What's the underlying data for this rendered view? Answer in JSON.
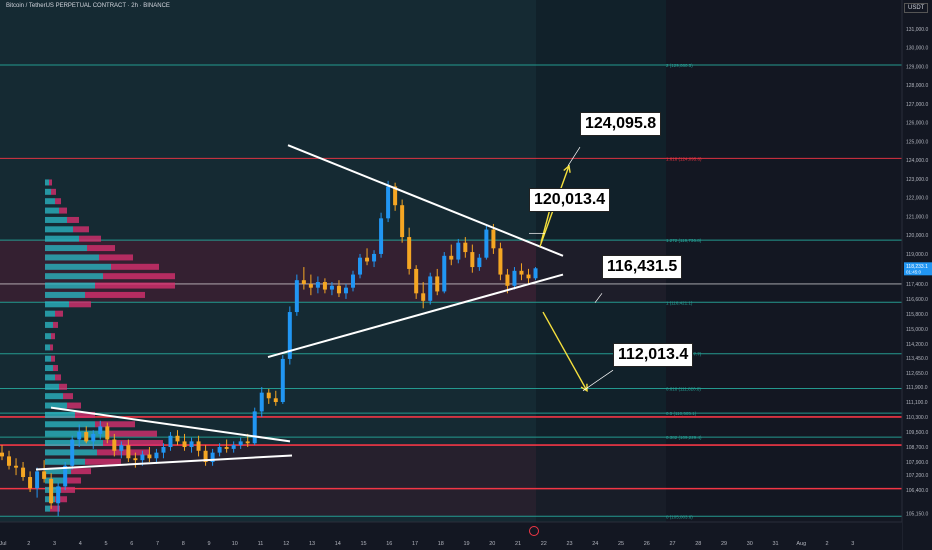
{
  "header": {
    "symbol": "Bitcoin / TetherUS PERPETUAL CONTRACT · 2h · BINANCE",
    "currency": "USDT"
  },
  "colors": {
    "background": "#131722",
    "zone_shade": "#152a33",
    "fib_line": "#26a69a",
    "hline_red": "#f23645",
    "bull": "#2196f3",
    "bear": "#f5a623",
    "vp_up": "#2ab3bf",
    "vp_down": "#d6306e",
    "trendline": "#ffffff",
    "projection": "#f5e03d"
  },
  "chart_data": {
    "type": "candlestick",
    "ylim": [
      104700,
      131800
    ],
    "y_ticks": [
      {
        "value": 105150,
        "label": "105,150.0"
      },
      {
        "value": 106400,
        "label": "106,400.0"
      },
      {
        "value": 107200,
        "label": "107,200.0"
      },
      {
        "value": 107900,
        "label": "107,900.0"
      },
      {
        "value": 108700,
        "label": "108,700.0"
      },
      {
        "value": 109500,
        "label": "109,500.0"
      },
      {
        "value": 110300,
        "label": "110,300.0"
      },
      {
        "value": 111100,
        "label": "111,100.0"
      },
      {
        "value": 111900,
        "label": "111,900.0"
      },
      {
        "value": 112650,
        "label": "112,650.0"
      },
      {
        "value": 113450,
        "label": "113,450.0"
      },
      {
        "value": 114200,
        "label": "114,200.0"
      },
      {
        "value": 115000,
        "label": "115,000.0"
      },
      {
        "value": 115800,
        "label": "115,800.0"
      },
      {
        "value": 116600,
        "label": "116,600.0"
      },
      {
        "value": 117400,
        "label": "117,400.0"
      },
      {
        "value": 118200,
        "label": "118,200.0"
      },
      {
        "value": 119000,
        "label": "119,000.0"
      },
      {
        "value": 120000,
        "label": "120,000.0"
      },
      {
        "value": 121000,
        "label": "121,000.0"
      },
      {
        "value": 122000,
        "label": "122,000.0"
      },
      {
        "value": 123000,
        "label": "123,000.0"
      },
      {
        "value": 124000,
        "label": "124,000.0"
      },
      {
        "value": 125000,
        "label": "125,000.0"
      },
      {
        "value": 126000,
        "label": "126,000.0"
      },
      {
        "value": 127000,
        "label": "127,000.0"
      },
      {
        "value": 128000,
        "label": "128,000.0"
      },
      {
        "value": 129000,
        "label": "129,000.0"
      },
      {
        "value": 130000,
        "label": "130,000.0"
      },
      {
        "value": 131000,
        "label": "131,000.0"
      }
    ],
    "x_ticks": [
      "Jul",
      "2",
      "3",
      "4",
      "5",
      "6",
      "7",
      "8",
      "9",
      "10",
      "11",
      "12",
      "13",
      "14",
      "15",
      "16",
      "17",
      "18",
      "19",
      "20",
      "21",
      "22",
      "23",
      "24",
      "25",
      "26",
      "27",
      "28",
      "29",
      "30",
      "31",
      "Aug",
      "2",
      "3"
    ],
    "fib_levels": [
      {
        "ratio": "0",
        "price": 105003.6,
        "label": "0 (105,003.6)"
      },
      {
        "ratio": "0.382",
        "price": 109229.4,
        "label": "0.382 (109,229.4)"
      },
      {
        "ratio": "0.5",
        "price": 110505.1,
        "label": "0.5 (110,505.1)"
      },
      {
        "ratio": "0.618",
        "price": 111820.8,
        "label": "0.618 (111,820.8)"
      },
      {
        "ratio": "0.786",
        "price": 113677.7,
        "label": "0.786 (113,677.7)"
      },
      {
        "ratio": "1",
        "price": 116421.1,
        "label": "1 (116,421.1)"
      },
      {
        "ratio": "1.272",
        "price": 119736.8,
        "label": "1.272 (119,736.8)"
      },
      {
        "ratio": "1.618",
        "price": 124095.8,
        "label": "1.618 (124,095.8)"
      },
      {
        "ratio": "2",
        "price": 129080.5,
        "label": "2 (129,080.5)"
      }
    ],
    "horizontal_levels": [
      {
        "price": 110305.6,
        "label": "110,305.6"
      },
      {
        "price": 108802.5,
        "label": "108,802.5"
      },
      {
        "price": 106479.9,
        "label": "106,479.9"
      }
    ],
    "last_price": {
      "price": "118,233.1",
      "countdown": "01:45:0"
    },
    "annotations": [
      "124,095.8",
      "120,013.4",
      "116,431.5",
      "112,013.4"
    ],
    "candles": [
      [
        0,
        108400,
        108800,
        108000,
        108200
      ],
      [
        1,
        108200,
        108500,
        107500,
        107700
      ],
      [
        2,
        107700,
        108100,
        107200,
        107600
      ],
      [
        3,
        107600,
        107900,
        106900,
        107100
      ],
      [
        4,
        107100,
        107400,
        106300,
        106500
      ],
      [
        5,
        106500,
        107600,
        106000,
        107400
      ],
      [
        6,
        107400,
        108000,
        106800,
        107000
      ],
      [
        7,
        107000,
        107300,
        105400,
        105700
      ],
      [
        8,
        105700,
        106800,
        105003,
        106600
      ],
      [
        9,
        106600,
        107900,
        106400,
        107700
      ],
      [
        10,
        107700,
        109300,
        107500,
        109100
      ],
      [
        11,
        109100,
        109900,
        108700,
        109500
      ],
      [
        12,
        109500,
        109800,
        108900,
        109000
      ],
      [
        13,
        109000,
        109600,
        108600,
        109400
      ],
      [
        14,
        109400,
        110100,
        109100,
        109800
      ],
      [
        15,
        109800,
        110000,
        108900,
        109100
      ],
      [
        16,
        109100,
        109400,
        108200,
        108500
      ],
      [
        17,
        108500,
        109000,
        108100,
        108800
      ],
      [
        18,
        108800,
        109100,
        107900,
        108100
      ],
      [
        19,
        108100,
        108400,
        107600,
        108000
      ],
      [
        20,
        108000,
        108500,
        107700,
        108300
      ],
      [
        21,
        108300,
        108700,
        107900,
        108100
      ],
      [
        22,
        108100,
        108600,
        107800,
        108400
      ],
      [
        23,
        108400,
        108900,
        108100,
        108700
      ],
      [
        24,
        108700,
        109500,
        108500,
        109300
      ],
      [
        25,
        109300,
        109600,
        108800,
        109000
      ],
      [
        26,
        109000,
        109400,
        108500,
        108700
      ],
      [
        27,
        108700,
        109200,
        108400,
        109000
      ],
      [
        28,
        109000,
        109300,
        108200,
        108500
      ],
      [
        29,
        108500,
        108800,
        107700,
        107900
      ],
      [
        30,
        107900,
        108600,
        107700,
        108400
      ],
      [
        31,
        108400,
        108900,
        108200,
        108700
      ],
      [
        32,
        108700,
        109100,
        108400,
        108600
      ],
      [
        33,
        108600,
        109000,
        108400,
        108800
      ],
      [
        34,
        108800,
        109200,
        108600,
        109000
      ],
      [
        35,
        109000,
        109400,
        108700,
        108900
      ],
      [
        36,
        108900,
        110800,
        108800,
        110600
      ],
      [
        37,
        110600,
        111900,
        110300,
        111600
      ],
      [
        38,
        111600,
        111800,
        111000,
        111300
      ],
      [
        39,
        111300,
        111700,
        110900,
        111100
      ],
      [
        40,
        111100,
        113600,
        111000,
        113400
      ],
      [
        41,
        113400,
        116200,
        113100,
        115900
      ],
      [
        42,
        115900,
        117900,
        115700,
        117600
      ],
      [
        43,
        117600,
        118300,
        117100,
        117400
      ],
      [
        44,
        117400,
        117900,
        116800,
        117200
      ],
      [
        45,
        117200,
        117800,
        116900,
        117500
      ],
      [
        46,
        117500,
        117700,
        116900,
        117100
      ],
      [
        47,
        117100,
        117500,
        116800,
        117300
      ],
      [
        48,
        117300,
        117600,
        116700,
        116900
      ],
      [
        49,
        116900,
        117400,
        116600,
        117200
      ],
      [
        50,
        117200,
        118100,
        117000,
        117900
      ],
      [
        51,
        117900,
        119000,
        117700,
        118800
      ],
      [
        52,
        118800,
        119300,
        118400,
        118600
      ],
      [
        53,
        118600,
        119200,
        118300,
        119000
      ],
      [
        54,
        119000,
        121200,
        118800,
        120900
      ],
      [
        55,
        120900,
        122900,
        120700,
        122600
      ],
      [
        56,
        122600,
        122800,
        121300,
        121600
      ],
      [
        57,
        121600,
        121900,
        119600,
        119900
      ],
      [
        58,
        119900,
        120400,
        117900,
        118200
      ],
      [
        59,
        118200,
        118400,
        116600,
        116900
      ],
      [
        60,
        116900,
        117500,
        116100,
        116500
      ],
      [
        61,
        116500,
        118000,
        116300,
        117800
      ],
      [
        62,
        117800,
        118200,
        116800,
        117000
      ],
      [
        63,
        117000,
        119100,
        116900,
        118900
      ],
      [
        64,
        118900,
        119500,
        118400,
        118700
      ],
      [
        65,
        118700,
        119800,
        118500,
        119600
      ],
      [
        66,
        119600,
        119900,
        118800,
        119100
      ],
      [
        67,
        119100,
        119500,
        118000,
        118300
      ],
      [
        68,
        118300,
        119000,
        118100,
        118800
      ],
      [
        69,
        118800,
        120500,
        118700,
        120300
      ],
      [
        70,
        120300,
        120600,
        119000,
        119300
      ],
      [
        71,
        119300,
        119600,
        117600,
        117900
      ],
      [
        72,
        117900,
        118200,
        116900,
        117300
      ],
      [
        73,
        117300,
        118300,
        117100,
        118100
      ],
      [
        74,
        118100,
        118500,
        117600,
        117900
      ],
      [
        75,
        117900,
        118200,
        117400,
        117700
      ],
      [
        76,
        117700,
        118300,
        117600,
        118233
      ]
    ],
    "trendlines": [
      {
        "name": "descending-resistance",
        "from": [
          288,
          124800
        ],
        "to": [
          563,
          118900
        ]
      },
      {
        "name": "ascending-support",
        "from": [
          268,
          113500
        ],
        "to": [
          563,
          117900
        ]
      },
      {
        "name": "early-triangle-upper",
        "from": [
          51,
          110800
        ],
        "to": [
          290,
          109000
        ]
      },
      {
        "name": "early-triangle-lower",
        "from": [
          36,
          107500
        ],
        "to": [
          292,
          108250
        ]
      }
    ]
  }
}
